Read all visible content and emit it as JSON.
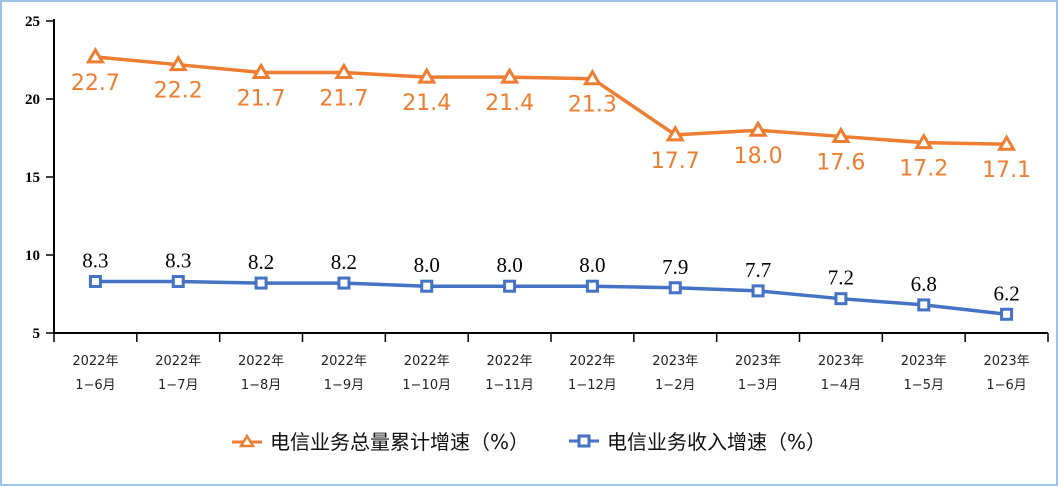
{
  "chart_data": {
    "type": "line",
    "categories": [
      [
        "2022年",
        "1−6月"
      ],
      [
        "2022年",
        "1−7月"
      ],
      [
        "2022年",
        "1−8月"
      ],
      [
        "2022年",
        "1−9月"
      ],
      [
        "2022年",
        "1−10月"
      ],
      [
        "2022年",
        "1−11月"
      ],
      [
        "2022年",
        "1−12月"
      ],
      [
        "2023年",
        "1−2月"
      ],
      [
        "2023年",
        "1−3月"
      ],
      [
        "2023年",
        "1−4月"
      ],
      [
        "2023年",
        "1−5月"
      ],
      [
        "2023年",
        "1−6月"
      ]
    ],
    "ylim": [
      5,
      25
    ],
    "yticks": [
      5,
      10,
      15,
      20,
      25
    ],
    "grid": false,
    "legend_position": "bottom",
    "series": [
      {
        "name": "电信业务总量累计增速（%）",
        "color": "#ED7D31",
        "marker": "triangle",
        "values": [
          22.7,
          22.2,
          21.7,
          21.7,
          21.4,
          21.4,
          21.3,
          17.7,
          18.0,
          17.6,
          17.2,
          17.1
        ],
        "labels": [
          "22.7",
          "22.2",
          "21.7",
          "21.7",
          "21.4",
          "21.4",
          "21.3",
          "17.7",
          "18.0",
          "17.6",
          "17.2",
          "17.1"
        ]
      },
      {
        "name": "电信业务收入增速（%）",
        "color": "#4472C4",
        "marker": "square",
        "values": [
          8.3,
          8.3,
          8.2,
          8.2,
          8.0,
          8.0,
          8.0,
          7.9,
          7.7,
          7.2,
          6.8,
          6.2
        ],
        "labels": [
          "8.3",
          "8.3",
          "8.2",
          "8.2",
          "8.0",
          "8.0",
          "8.0",
          "7.9",
          "7.7",
          "7.2",
          "6.8",
          "6.2"
        ]
      }
    ]
  }
}
